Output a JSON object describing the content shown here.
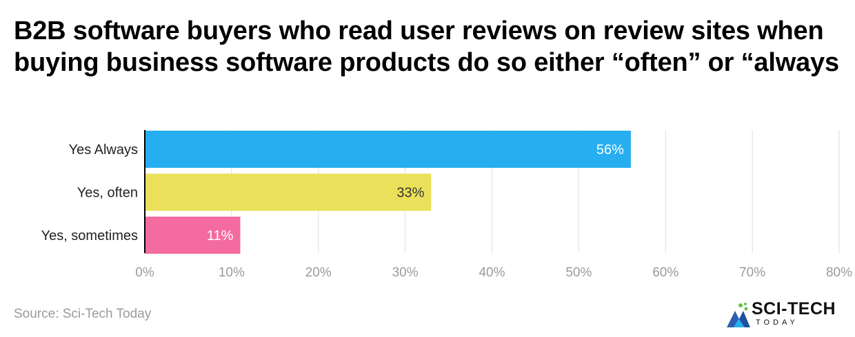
{
  "title": "B2B software buyers who read user reviews on review sites when buying business software products do so either “often” or “always",
  "source": "Source: Sci-Tech Today",
  "logo": {
    "text": "SCI-TECH",
    "sub": "TODAY"
  },
  "colors": {
    "gridline": "#e3e3e3",
    "axis": "#000000",
    "tick_label": "#9a9a9a",
    "category_label": "#222222"
  },
  "chart_data": {
    "type": "bar",
    "orientation": "horizontal",
    "categories": [
      "Yes Always",
      "Yes, often",
      "Yes, sometimes"
    ],
    "values": [
      56,
      33,
      11
    ],
    "value_labels": [
      "56%",
      "33%",
      "11%"
    ],
    "bar_colors": [
      "#26aef0",
      "#ebe05a",
      "#f46c9f"
    ],
    "label_colors": [
      "#ffffff",
      "#333333",
      "#ffffff"
    ],
    "xlim": [
      0,
      80
    ],
    "xticks": [
      0,
      10,
      20,
      30,
      40,
      50,
      60,
      70,
      80
    ],
    "xtick_labels": [
      "0%",
      "10%",
      "20%",
      "30%",
      "40%",
      "50%",
      "60%",
      "70%",
      "80%"
    ],
    "grid": true,
    "legend": "none"
  }
}
